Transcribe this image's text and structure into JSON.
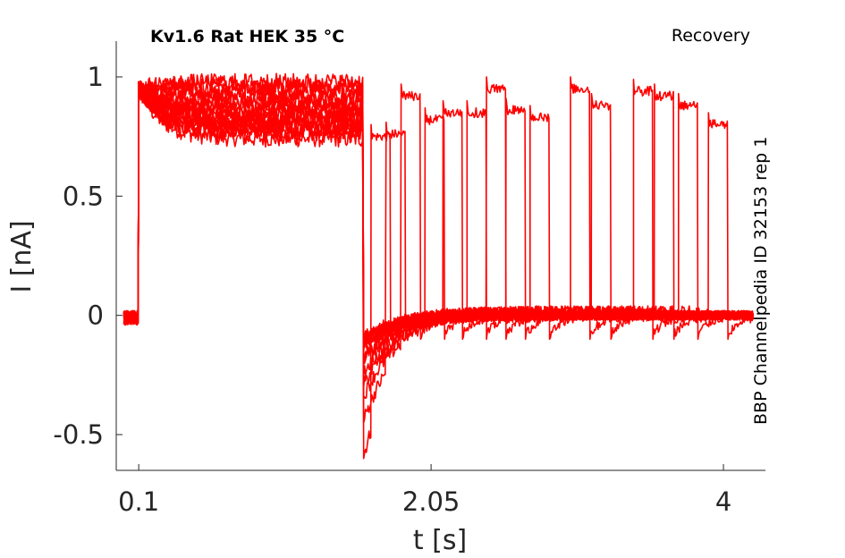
{
  "title": "Kv1.6  Rat  HEK  35 °C",
  "protocol_label": "Recovery",
  "side_label": "BBP Channelpedia ID 32153 rep 1",
  "colors": {
    "trace": "#ff0000",
    "axis": "#262626"
  },
  "chart_data": {
    "type": "line",
    "xlabel": "t [s]",
    "ylabel": "I [nA]",
    "xlim": [
      -0.05,
      4.28
    ],
    "ylim": [
      -0.65,
      1.15
    ],
    "xticks": [
      0.1,
      2.05,
      4
    ],
    "xtick_labels": [
      "0.1",
      "2.05",
      "4"
    ],
    "yticks": [
      -0.5,
      0,
      0.5,
      1
    ],
    "ytick_labels": [
      "-0.5",
      "0",
      "0.5",
      "1"
    ],
    "grid": false,
    "description_of_series": "15 overlaid sweeps: depolarizing pulse from t=0.1 s to 1.6 s, then repolarizing gap of variable duration before a second pulse",
    "pulse1_start": 0.1,
    "pulse1_end": 1.6,
    "sweeps": [
      {
        "plateau1": 0.74,
        "recover_start": 1.65,
        "pulse2_level": 0.75,
        "pulse2_end": 1.78,
        "min_after_step": -0.6
      },
      {
        "plateau1": 0.77,
        "recover_start": 1.75,
        "pulse2_level": 0.76,
        "pulse2_end": 1.88,
        "min_after_step": -0.45
      },
      {
        "plateau1": 0.8,
        "recover_start": 1.85,
        "pulse2_level": 0.92,
        "pulse2_end": 1.98,
        "min_after_step": -0.35
      },
      {
        "plateau1": 0.83,
        "recover_start": 2.01,
        "pulse2_level": 0.82,
        "pulse2_end": 2.14,
        "min_after_step": -0.3
      },
      {
        "plateau1": 0.86,
        "recover_start": 2.13,
        "pulse2_level": 0.85,
        "pulse2_end": 2.26,
        "min_after_step": -0.25
      },
      {
        "plateau1": 0.88,
        "recover_start": 2.29,
        "pulse2_level": 0.85,
        "pulse2_end": 2.42,
        "min_after_step": -0.2
      },
      {
        "plateau1": 0.9,
        "recover_start": 2.42,
        "pulse2_level": 0.95,
        "pulse2_end": 2.55,
        "min_after_step": -0.18
      },
      {
        "plateau1": 0.92,
        "recover_start": 2.55,
        "pulse2_level": 0.86,
        "pulse2_end": 2.68,
        "min_after_step": -0.15
      },
      {
        "plateau1": 0.94,
        "recover_start": 2.71,
        "pulse2_level": 0.83,
        "pulse2_end": 2.84,
        "min_after_step": -0.12
      },
      {
        "plateau1": 0.96,
        "recover_start": 2.98,
        "pulse2_level": 0.95,
        "pulse2_end": 3.11,
        "min_after_step": -0.12
      },
      {
        "plateau1": 0.98,
        "recover_start": 3.12,
        "pulse2_level": 0.88,
        "pulse2_end": 3.25,
        "min_after_step": -0.12
      },
      {
        "plateau1": 0.85,
        "recover_start": 3.4,
        "pulse2_level": 0.94,
        "pulse2_end": 3.53,
        "min_after_step": -0.12
      },
      {
        "plateau1": 0.82,
        "recover_start": 3.54,
        "pulse2_level": 0.92,
        "pulse2_end": 3.67,
        "min_after_step": -0.12
      },
      {
        "plateau1": 0.8,
        "recover_start": 3.7,
        "pulse2_level": 0.88,
        "pulse2_end": 3.83,
        "min_after_step": -0.12
      },
      {
        "plateau1": 0.78,
        "recover_start": 3.9,
        "pulse2_level": 0.8,
        "pulse2_end": 4.03,
        "min_after_step": -0.1
      }
    ],
    "baseline_start": 0.0,
    "sweep_end": 4.2
  }
}
